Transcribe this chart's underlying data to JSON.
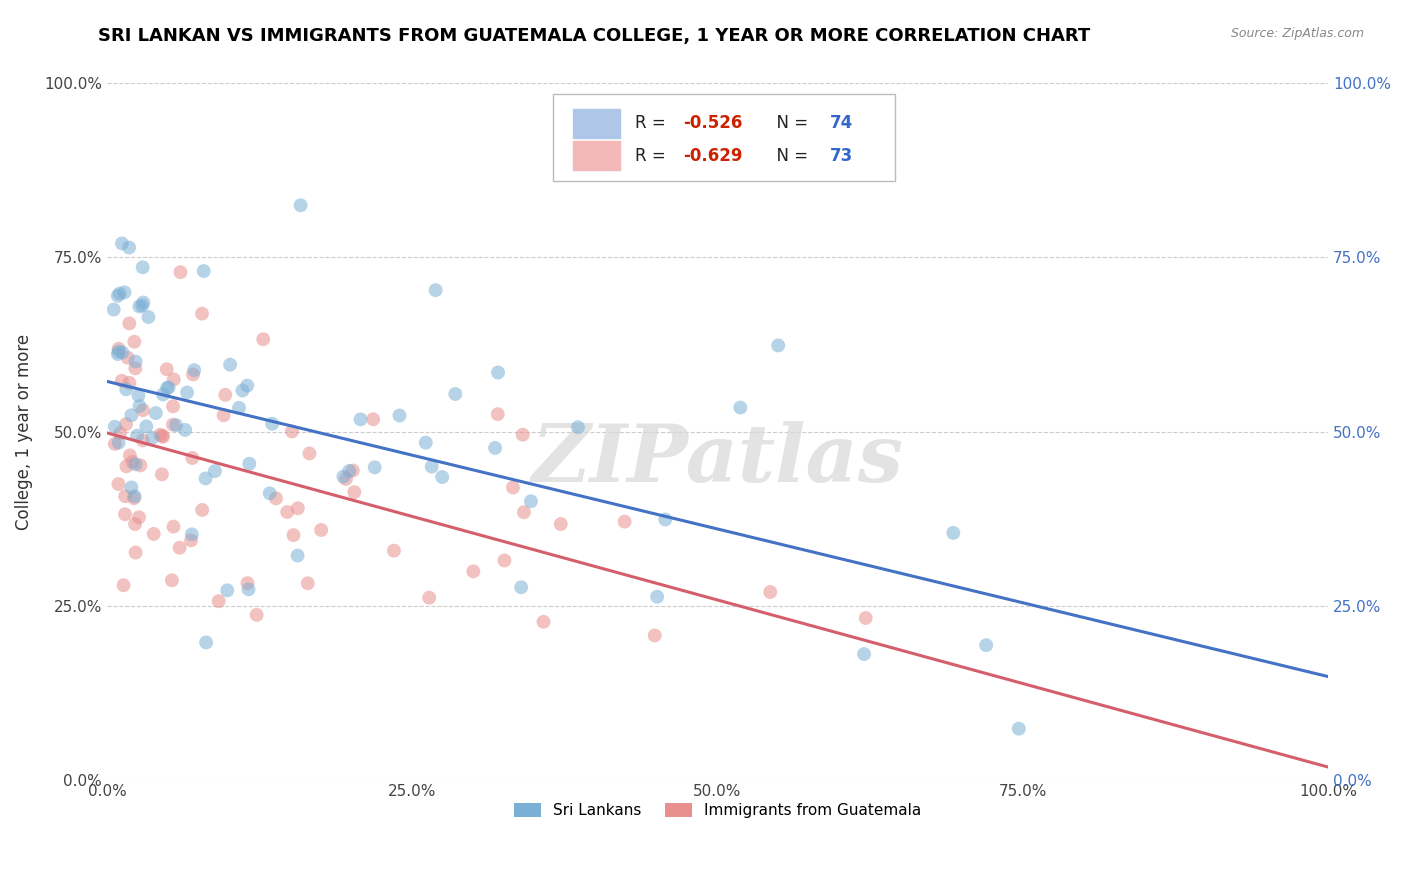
{
  "title": "SRI LANKAN VS IMMIGRANTS FROM GUATEMALA COLLEGE, 1 YEAR OR MORE CORRELATION CHART",
  "source": "Source: ZipAtlas.com",
  "ylabel": "College, 1 year or more",
  "xlim": [
    0.0,
    1.0
  ],
  "ylim": [
    0.0,
    1.0
  ],
  "xtick_positions": [
    0.0,
    0.25,
    0.5,
    0.75,
    1.0
  ],
  "xtick_labels": [
    "0.0%",
    "25.0%",
    "50.0%",
    "75.0%",
    "100.0%"
  ],
  "ytick_positions": [
    0.0,
    0.25,
    0.5,
    0.75,
    1.0
  ],
  "ytick_labels": [
    "0.0%",
    "25.0%",
    "50.0%",
    "75.0%",
    "100.0%"
  ],
  "blue_color": "#7bafd4",
  "blue_line_color": "#4472c4",
  "pink_color": "#e8908e",
  "pink_line_color": "#d45f6a",
  "blue_R": -0.526,
  "blue_N": 74,
  "pink_R": -0.629,
  "pink_N": 73,
  "blue_line_start_y": 0.572,
  "blue_line_end_y": 0.148,
  "pink_line_start_y": 0.498,
  "pink_line_end_y": 0.018,
  "watermark": "ZIPatlas",
  "background_color": "#ffffff",
  "grid_color": "#cccccc",
  "title_fontsize": 13,
  "axis_label_fontsize": 12,
  "tick_fontsize": 11,
  "marker_size": 10,
  "marker_alpha": 0.55,
  "legend_box_color": "#aec6e8",
  "legend_box_color2": "#f4b8b8",
  "legend_R_color": "#cc2200",
  "legend_N_color": "#3366cc"
}
